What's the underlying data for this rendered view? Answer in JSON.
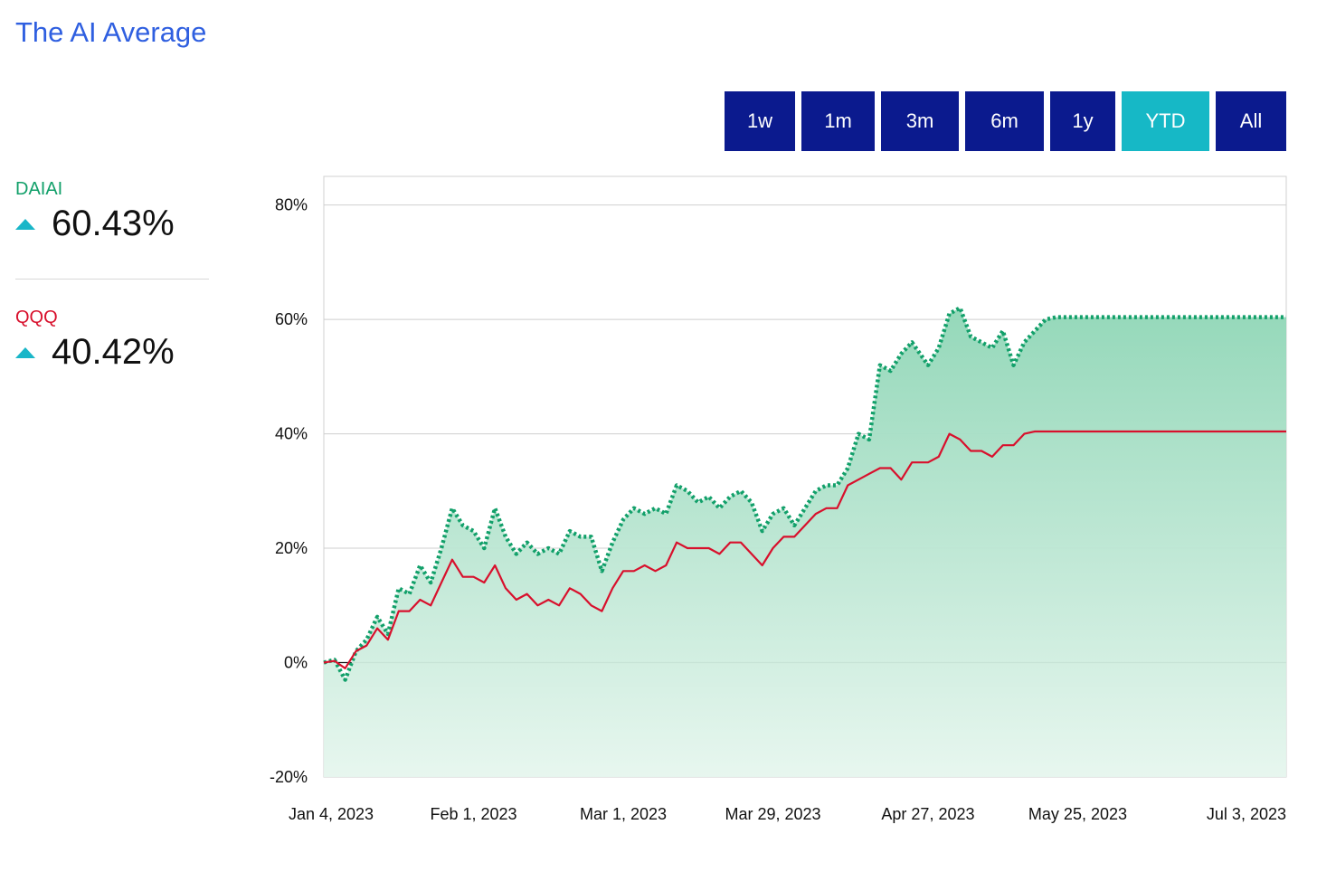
{
  "title": "The AI Average",
  "range_buttons": [
    {
      "label": "1w",
      "active": false
    },
    {
      "label": "1m",
      "active": false
    },
    {
      "label": "3m",
      "active": false
    },
    {
      "label": "6m",
      "active": false
    },
    {
      "label": "1y",
      "active": false
    },
    {
      "label": "YTD",
      "active": true
    },
    {
      "label": "All",
      "active": false
    }
  ],
  "stats": [
    {
      "name": "DAIAI",
      "value": "60.43%",
      "color": "#12a06a",
      "icon": "triangle-up-icon"
    },
    {
      "name": "QQQ",
      "value": "40.42%",
      "color": "#d8102c",
      "icon": "triangle-up-icon"
    }
  ],
  "colors": {
    "accent": "#2f5fe0",
    "button": "#0b1a8e",
    "button_active": "#16b8c6",
    "up": "#19b6c8"
  },
  "chart_data": {
    "type": "line",
    "y_tick_labels": [
      "80%",
      "60%",
      "40%",
      "20%",
      "0%",
      "-20%"
    ],
    "y_ticks": [
      80,
      60,
      40,
      20,
      0,
      -20
    ],
    "ylim": [
      -20,
      85
    ],
    "x_tick_labels": [
      "Jan 4, 2023",
      "Feb 1, 2023",
      "Mar 1, 2023",
      "Mar 29, 2023",
      "Apr 27, 2023",
      "May 25, 2023",
      "Jul 3, 2023"
    ],
    "x_ticks": [
      "2023-01-04",
      "2023-02-01",
      "2023-03-01",
      "2023-03-29",
      "2023-04-27",
      "2023-05-25",
      "2023-07-03"
    ],
    "xlim": [
      "2023-01-04",
      "2023-07-03"
    ],
    "grid": true,
    "zero_line": true,
    "series": [
      {
        "name": "DAIAI",
        "color": "#12a06a",
        "style": "dotted-with-area",
        "x": [
          "2023-01-04",
          "2023-01-06",
          "2023-01-08",
          "2023-01-10",
          "2023-01-12",
          "2023-01-14",
          "2023-01-16",
          "2023-01-18",
          "2023-01-20",
          "2023-01-22",
          "2023-01-24",
          "2023-01-26",
          "2023-01-28",
          "2023-01-30",
          "2023-02-01",
          "2023-02-03",
          "2023-02-05",
          "2023-02-07",
          "2023-02-09",
          "2023-02-11",
          "2023-02-13",
          "2023-02-15",
          "2023-02-17",
          "2023-02-19",
          "2023-02-21",
          "2023-02-23",
          "2023-02-25",
          "2023-02-27",
          "2023-03-01",
          "2023-03-03",
          "2023-03-05",
          "2023-03-07",
          "2023-03-09",
          "2023-03-11",
          "2023-03-13",
          "2023-03-15",
          "2023-03-17",
          "2023-03-19",
          "2023-03-21",
          "2023-03-23",
          "2023-03-25",
          "2023-03-27",
          "2023-03-29",
          "2023-03-31",
          "2023-04-02",
          "2023-04-04",
          "2023-04-06",
          "2023-04-08",
          "2023-04-10",
          "2023-04-12",
          "2023-04-14",
          "2023-04-16",
          "2023-04-18",
          "2023-04-20",
          "2023-04-22",
          "2023-04-24",
          "2023-04-27",
          "2023-04-29",
          "2023-05-01",
          "2023-05-03",
          "2023-05-05",
          "2023-05-07",
          "2023-05-09",
          "2023-05-11",
          "2023-05-13",
          "2023-05-15",
          "2023-05-17",
          "2023-05-19",
          "2023-05-21",
          "2023-05-23",
          "2023-05-25",
          "2023-05-27",
          "2023-05-29",
          "2023-05-31",
          "2023-06-02",
          "2023-06-04",
          "2023-06-06",
          "2023-06-08",
          "2023-06-10",
          "2023-06-12",
          "2023-06-14",
          "2023-06-16",
          "2023-06-18",
          "2023-06-20",
          "2023-06-22",
          "2023-06-24",
          "2023-06-26",
          "2023-06-28",
          "2023-06-30",
          "2023-07-03"
        ],
        "y": [
          0,
          0.5,
          -3,
          2,
          4,
          8,
          5,
          13,
          12,
          17,
          14,
          20,
          27,
          24,
          23,
          20,
          27,
          22,
          19,
          21,
          19,
          20,
          19,
          23,
          22,
          22,
          16,
          21,
          25,
          27,
          26,
          27,
          26,
          31,
          30,
          28,
          29,
          27,
          29,
          30,
          28,
          23,
          26,
          27,
          24,
          27,
          30,
          31,
          31,
          34,
          40,
          39,
          52,
          51,
          54,
          56,
          52,
          55,
          61,
          62,
          57,
          56,
          55,
          58,
          52,
          56,
          58,
          60,
          60.4,
          60.4,
          60.4,
          60.4,
          60.4,
          60.4,
          60.4,
          60.4,
          60.4,
          60.4,
          60.4,
          60.4,
          60.4,
          60.4,
          60.4,
          60.4,
          60.4,
          60.4,
          60.4,
          60.4,
          60.4,
          60.4
        ]
      },
      {
        "name": "QQQ",
        "color": "#d8102c",
        "style": "solid",
        "x": [
          "2023-01-04",
          "2023-01-06",
          "2023-01-08",
          "2023-01-10",
          "2023-01-12",
          "2023-01-14",
          "2023-01-16",
          "2023-01-18",
          "2023-01-20",
          "2023-01-22",
          "2023-01-24",
          "2023-01-26",
          "2023-01-28",
          "2023-01-30",
          "2023-02-01",
          "2023-02-03",
          "2023-02-05",
          "2023-02-07",
          "2023-02-09",
          "2023-02-11",
          "2023-02-13",
          "2023-02-15",
          "2023-02-17",
          "2023-02-19",
          "2023-02-21",
          "2023-02-23",
          "2023-02-25",
          "2023-02-27",
          "2023-03-01",
          "2023-03-03",
          "2023-03-05",
          "2023-03-07",
          "2023-03-09",
          "2023-03-11",
          "2023-03-13",
          "2023-03-15",
          "2023-03-17",
          "2023-03-19",
          "2023-03-21",
          "2023-03-23",
          "2023-03-25",
          "2023-03-27",
          "2023-03-29",
          "2023-03-31",
          "2023-04-02",
          "2023-04-04",
          "2023-04-06",
          "2023-04-08",
          "2023-04-10",
          "2023-04-12",
          "2023-04-14",
          "2023-04-16",
          "2023-04-18",
          "2023-04-20",
          "2023-04-22",
          "2023-04-24",
          "2023-04-27",
          "2023-04-29",
          "2023-05-01",
          "2023-05-03",
          "2023-05-05",
          "2023-05-07",
          "2023-05-09",
          "2023-05-11",
          "2023-05-13",
          "2023-05-15",
          "2023-05-17",
          "2023-05-19",
          "2023-05-21",
          "2023-05-23",
          "2023-05-25",
          "2023-05-27",
          "2023-05-29",
          "2023-05-31",
          "2023-06-02",
          "2023-06-04",
          "2023-06-06",
          "2023-06-08",
          "2023-06-10",
          "2023-06-12",
          "2023-06-14",
          "2023-06-16",
          "2023-06-18",
          "2023-06-20",
          "2023-06-22",
          "2023-06-24",
          "2023-06-26",
          "2023-06-28",
          "2023-06-30",
          "2023-07-03"
        ],
        "y": [
          0,
          0.3,
          -1,
          2,
          3,
          6,
          4,
          9,
          9,
          11,
          10,
          14,
          18,
          15,
          15,
          14,
          17,
          13,
          11,
          12,
          10,
          11,
          10,
          13,
          12,
          10,
          9,
          13,
          16,
          16,
          17,
          16,
          17,
          21,
          20,
          20,
          20,
          19,
          21,
          21,
          19,
          17,
          20,
          22,
          22,
          24,
          26,
          27,
          27,
          31,
          32,
          33,
          34,
          34,
          32,
          35,
          35,
          36,
          40,
          39,
          37,
          37,
          36,
          38,
          38,
          40,
          40.4,
          40.4,
          40.4,
          40.4,
          40.4,
          40.4,
          40.4,
          40.4,
          40.4,
          40.4,
          40.4,
          40.4,
          40.4,
          40.4,
          40.4,
          40.4,
          40.4,
          40.4,
          40.4,
          40.4,
          40.4,
          40.4,
          40.4,
          40.4
        ]
      }
    ]
  }
}
